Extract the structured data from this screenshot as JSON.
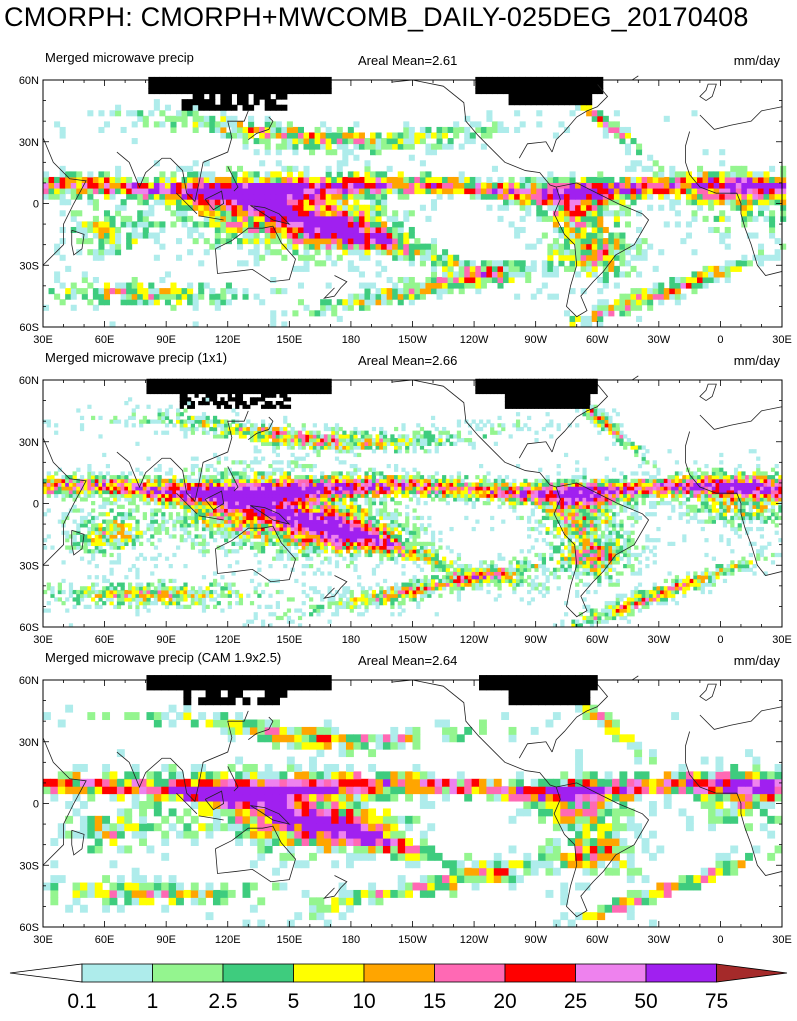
{
  "title": "CMORPH: CMORPH+MWCOMB_DAILY-025DEG_20170408",
  "units": "mm/day",
  "panels": [
    {
      "label": "Merged microwave precip",
      "mean": "Areal Mean=2.61",
      "res": 1
    },
    {
      "label": "Merged microwave precip (1x1)",
      "mean": "Areal Mean=2.66",
      "res": 2
    },
    {
      "label": "Merged microwave precip (CAM 1.9x2.5)",
      "mean": "Areal Mean=2.64",
      "res": 4
    }
  ],
  "lat_labels": [
    "60N",
    "30N",
    "0",
    "30S",
    "60S"
  ],
  "lon_labels": [
    "30E",
    "60E",
    "90E",
    "120E",
    "150E",
    "180",
    "150W",
    "120W",
    "90W",
    "60W",
    "30W",
    "0",
    "30E"
  ],
  "colorbar": {
    "labels": [
      "0.1",
      "1",
      "2.5",
      "5",
      "10",
      "15",
      "20",
      "25",
      "50",
      "75"
    ],
    "colors": [
      "#ffffff",
      "#aeeceb",
      "#94f58f",
      "#3ecc7e",
      "#ffff00",
      "#ffa500",
      "#ff69b4",
      "#ff0000",
      "#ee82ee",
      "#a020f0",
      "#a52a2a"
    ]
  },
  "missing_color": "#000000",
  "chart_data": {
    "type": "heatmap",
    "title": "CMORPH: CMORPH+MWCOMB_DAILY-025DEG_20170408",
    "lat_range": [
      -60,
      60
    ],
    "lon_range": [
      30,
      390
    ],
    "panels": [
      {
        "name": "Merged microwave precip",
        "areal_mean": 2.61
      },
      {
        "name": "Merged microwave precip (1x1)",
        "areal_mean": 2.66
      },
      {
        "name": "Merged microwave precip (CAM 1.9x2.5)",
        "areal_mean": 2.64
      }
    ],
    "levels": [
      0.1,
      1,
      2.5,
      5,
      10,
      15,
      20,
      25,
      50,
      75
    ]
  }
}
